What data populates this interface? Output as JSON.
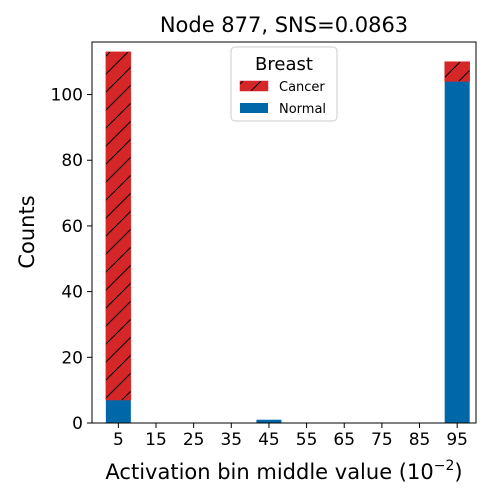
{
  "chart_data": {
    "type": "bar",
    "stacked": true,
    "title": "Node 877, SNS=0.0863",
    "xlabel": "Activation bin middle value (10",
    "xlabel_exponent": "−2",
    "xlabel_close": ")",
    "ylabel": "Counts",
    "categories": [
      "5",
      "15",
      "25",
      "35",
      "45",
      "55",
      "65",
      "75",
      "85",
      "95"
    ],
    "x": [
      5,
      15,
      25,
      35,
      45,
      55,
      65,
      75,
      85,
      95
    ],
    "series": [
      {
        "name": "Normal",
        "color": "#0068a8",
        "hatch": false,
        "values": [
          7,
          0,
          0,
          0,
          1,
          0,
          0,
          0,
          0,
          104
        ]
      },
      {
        "name": "Cancer",
        "color": "#d62728",
        "hatch": true,
        "values": [
          106,
          0,
          0,
          0,
          0,
          0,
          0,
          0,
          0,
          6
        ]
      }
    ],
    "ylim": [
      0,
      116
    ],
    "yticks": [
      "0",
      "20",
      "40",
      "60",
      "80",
      "100"
    ],
    "xlim": [
      -2,
      100
    ],
    "legend": {
      "title": "Breast",
      "placement": "upper-center",
      "entries": [
        "Cancer",
        "Normal"
      ]
    },
    "grid": false
  }
}
